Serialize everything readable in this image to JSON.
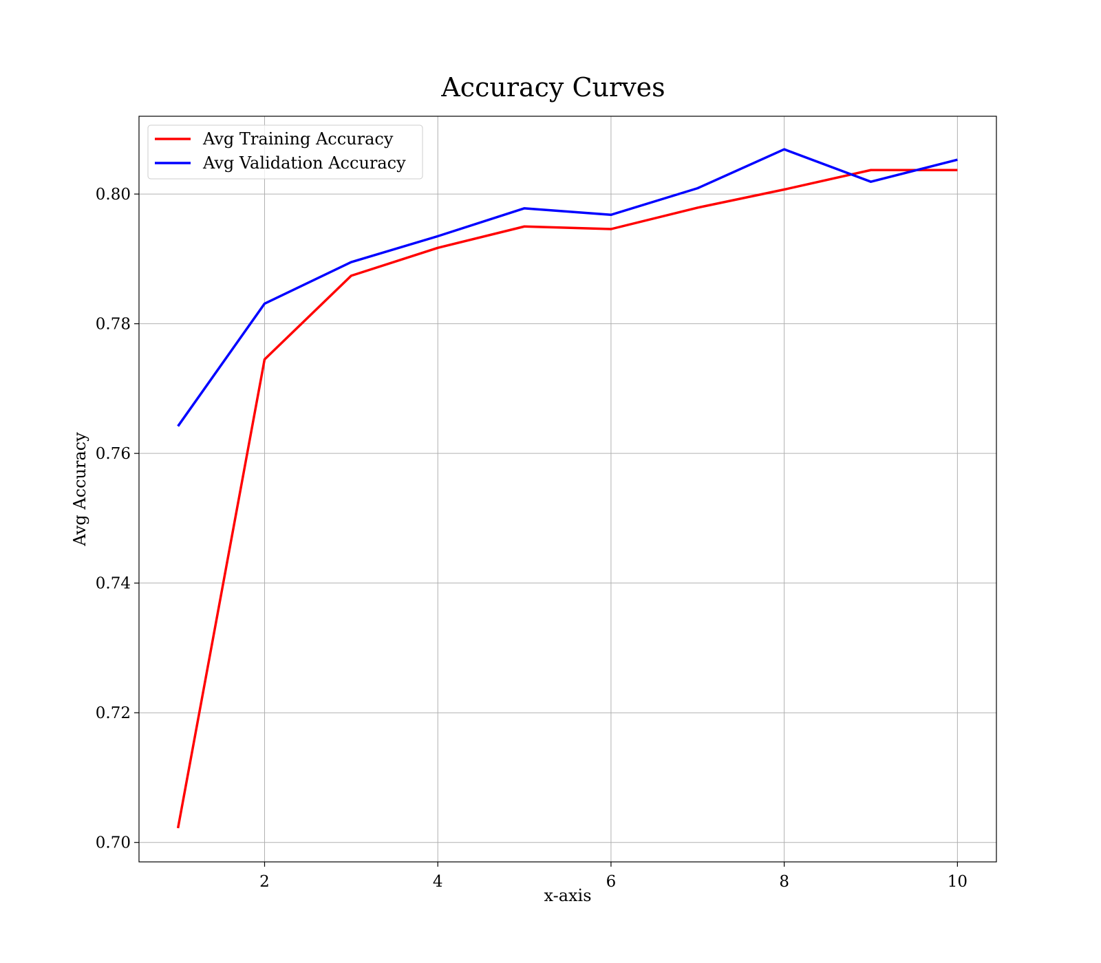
{
  "chart_data": {
    "type": "line",
    "title": "Accuracy Curves",
    "xlabel": "x-axis",
    "ylabel": "Avg Accuracy",
    "x": [
      1,
      2,
      3,
      4,
      5,
      6,
      7,
      8,
      9,
      10
    ],
    "xlim": [
      0.55,
      10.45
    ],
    "ylim": [
      0.697,
      0.812
    ],
    "xticks": [
      2,
      4,
      6,
      8,
      10
    ],
    "xtick_labels": [
      "2",
      "4",
      "6",
      "8",
      "10"
    ],
    "yticks": [
      0.7,
      0.72,
      0.74,
      0.76,
      0.78,
      0.8
    ],
    "ytick_labels": [
      "0.70",
      "0.72",
      "0.74",
      "0.76",
      "0.78",
      "0.80"
    ],
    "grid": true,
    "legend_position": "top-left",
    "series": [
      {
        "name": "Avg Training Accuracy",
        "color": "#ff0000",
        "values": [
          0.7022,
          0.7745,
          0.7874,
          0.7917,
          0.795,
          0.7946,
          0.7979,
          0.8007,
          0.8037,
          0.8037
        ]
      },
      {
        "name": "Avg Validation Accuracy",
        "color": "#0000ff",
        "values": [
          0.7642,
          0.7831,
          0.7895,
          0.7935,
          0.7978,
          0.7968,
          0.8009,
          0.8069,
          0.8019,
          0.8053
        ]
      }
    ]
  }
}
